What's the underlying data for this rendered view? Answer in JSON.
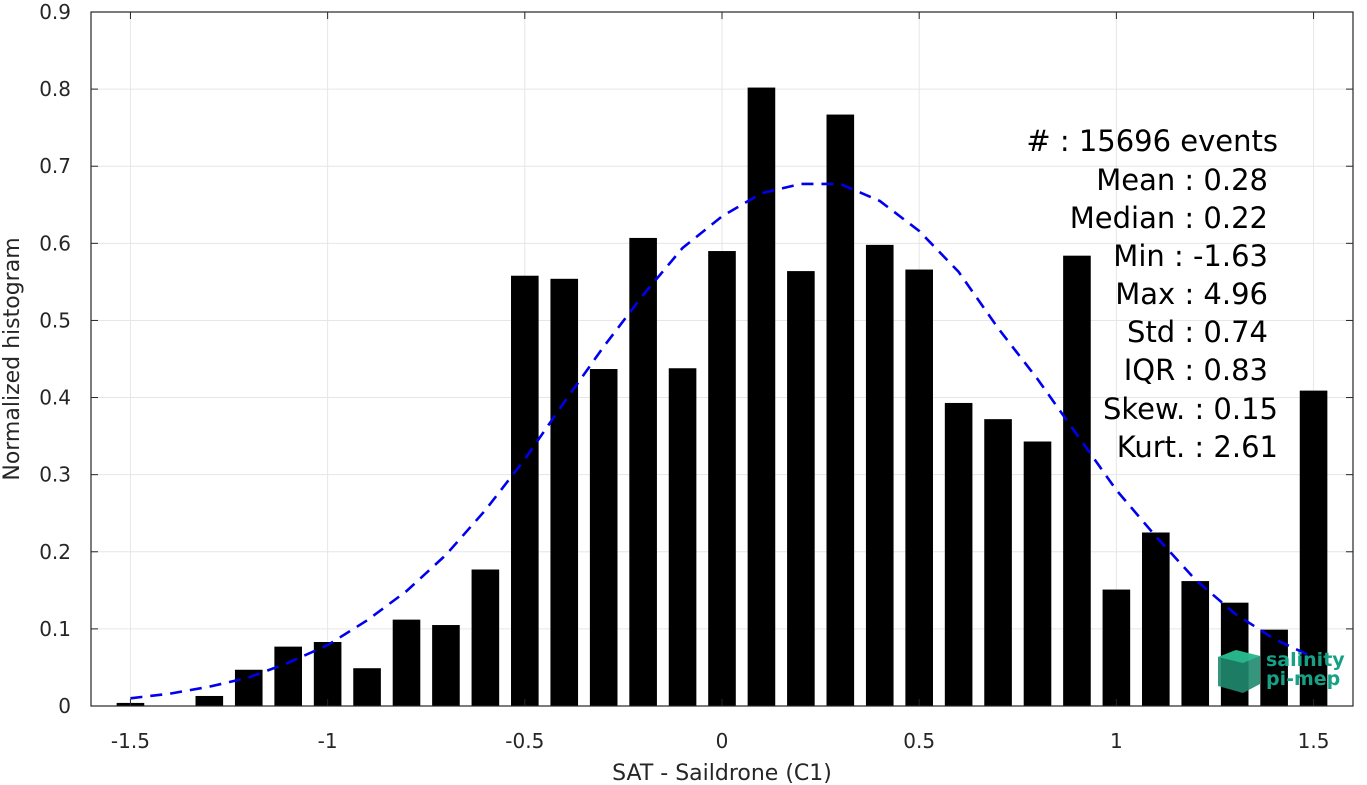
{
  "chart_data": {
    "type": "bar",
    "xlabel": "SAT - Saildrone (C1)",
    "ylabel": "Normalized histogram",
    "xlim": [
      -1.6,
      1.6
    ],
    "ylim": [
      0,
      0.9
    ],
    "xticks": [
      -1.5,
      -1,
      -0.5,
      0,
      0.5,
      1,
      1.5
    ],
    "xtick_labels": [
      "-1.5",
      "-1",
      "-0.5",
      "0",
      "0.5",
      "1",
      "1.5"
    ],
    "yticks": [
      0,
      0.1,
      0.2,
      0.3,
      0.4,
      0.5,
      0.6,
      0.7,
      0.8,
      0.9
    ],
    "ytick_labels": [
      "0",
      "0.1",
      "0.2",
      "0.3",
      "0.4",
      "0.5",
      "0.6",
      "0.7",
      "0.8",
      "0.9"
    ],
    "grid": true,
    "bar_color": "#000000",
    "bars": {
      "x": [
        -1.5,
        -1.4,
        -1.3,
        -1.2,
        -1.1,
        -1.0,
        -0.9,
        -0.8,
        -0.7,
        -0.6,
        -0.5,
        -0.4,
        -0.3,
        -0.2,
        -0.1,
        0.0,
        0.1,
        0.2,
        0.3,
        0.4,
        0.5,
        0.6,
        0.7,
        0.8,
        0.9,
        1.0,
        1.1,
        1.2,
        1.3,
        1.4,
        1.5
      ],
      "values": [
        0.004,
        0.0,
        0.013,
        0.047,
        0.077,
        0.083,
        0.049,
        0.112,
        0.105,
        0.177,
        0.558,
        0.554,
        0.437,
        0.607,
        0.438,
        0.59,
        0.802,
        0.564,
        0.767,
        0.598,
        0.566,
        0.393,
        0.372,
        0.343,
        0.584,
        0.151,
        0.225,
        0.162,
        0.134,
        0.099,
        0.409
      ]
    },
    "fit_curve": {
      "style": "dashed",
      "color": "#0000ee",
      "x": [
        -1.5,
        -1.4,
        -1.3,
        -1.2,
        -1.1,
        -1.0,
        -0.9,
        -0.8,
        -0.7,
        -0.6,
        -0.5,
        -0.4,
        -0.3,
        -0.2,
        -0.1,
        0.0,
        0.1,
        0.2,
        0.3,
        0.4,
        0.5,
        0.6,
        0.7,
        0.8,
        0.9,
        1.0,
        1.1,
        1.2,
        1.3,
        1.4,
        1.5
      ],
      "values": [
        0.01,
        0.016,
        0.025,
        0.037,
        0.056,
        0.079,
        0.111,
        0.149,
        0.196,
        0.254,
        0.32,
        0.394,
        0.466,
        0.533,
        0.594,
        0.635,
        0.665,
        0.677,
        0.677,
        0.655,
        0.616,
        0.563,
        0.49,
        0.424,
        0.352,
        0.28,
        0.22,
        0.164,
        0.12,
        0.087,
        0.063
      ]
    }
  },
  "stats": [
    "#  : 15696 events",
    "Mean : 0.28",
    "Median : 0.22",
    "Min : -1.63",
    "Max : 4.96",
    "Std : 0.74",
    "IQR : 0.83",
    "Skew. : 0.15",
    "Kurt. : 2.61"
  ],
  "logo": {
    "line1": "salinity",
    "line2": "pi-mep",
    "color": "#16a085"
  }
}
